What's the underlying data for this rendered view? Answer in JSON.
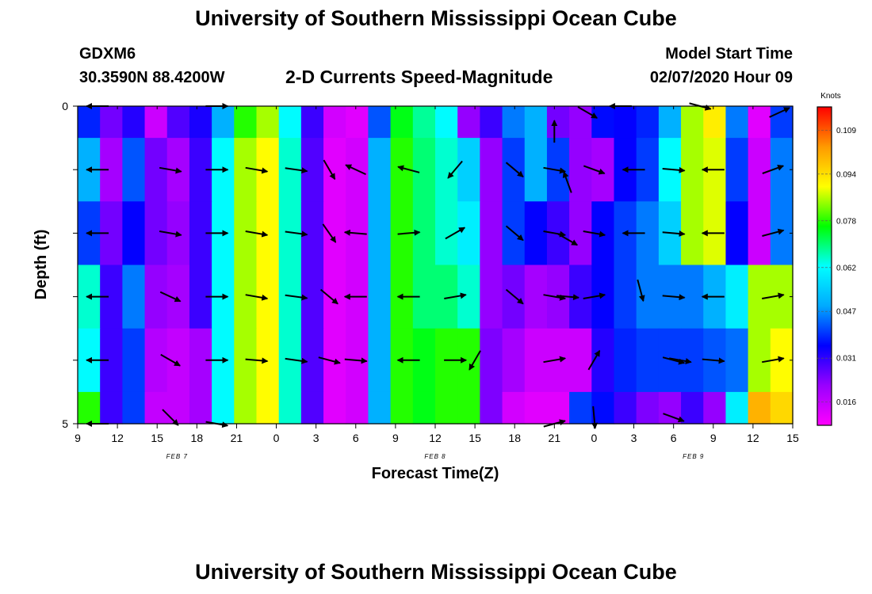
{
  "header": {
    "title_top": "University of Southern Mississippi Ocean Cube",
    "title_bottom": "University of Southern Mississippi Ocean Cube",
    "station_id": "GDXM6",
    "station_coords": "30.3590N 88.4200W",
    "chart_title": "2-D Currents Speed-Magnitude",
    "run_label": "Model Start Time",
    "run_time": "02/07/2020 Hour 09"
  },
  "chart_data": {
    "type": "heatmap",
    "title": "2-D Currents Speed-Magnitude",
    "xlabel": "Forecast Time(Z)",
    "ylabel": "Depth (ft)",
    "x_ticks": [
      "9",
      "12",
      "15",
      "18",
      "21",
      "0",
      "3",
      "6",
      "9",
      "12",
      "15",
      "18",
      "21",
      "0",
      "3",
      "6",
      "9",
      "12",
      "15"
    ],
    "x_range_hours": [
      0,
      54
    ],
    "day_labels": [
      {
        "text": "FEB 7",
        "hour": 7.5
      },
      {
        "text": "FEB 8",
        "hour": 27
      },
      {
        "text": "FEB 9",
        "hour": 46.5
      }
    ],
    "y_ticks": [
      "0",
      "5"
    ],
    "ylim": [
      0,
      5
    ],
    "y_inverted": true,
    "colorbar": {
      "unit": "Knots",
      "vmin": 0.008,
      "vmax": 0.117,
      "ticks": [
        "0.109",
        "0.094",
        "0.078",
        "0.062",
        "0.047",
        "0.031",
        "0.016"
      ],
      "colors": [
        "#ff00ff",
        "#9900ff",
        "#0000ff",
        "#00aaff",
        "#00ffff",
        "#00ff00",
        "#ffff00",
        "#ff9900",
        "#ff0000"
      ]
    },
    "layers": [
      {
        "depth_top": 0,
        "depth_bottom": 0.5,
        "speed": [
          0.038,
          0.025,
          0.032,
          0.015,
          0.028,
          0.033,
          0.05,
          0.078,
          0.085,
          0.062,
          0.03,
          0.014,
          0.012,
          0.042,
          0.075,
          0.068,
          0.062,
          0.022,
          0.03,
          0.045,
          0.05,
          0.025,
          0.022,
          0.036,
          0.035,
          0.038,
          0.05,
          0.085,
          0.092,
          0.045,
          0.012,
          0.04
        ],
        "arrows": [
          {
            "hour": 1.5,
            "depth": 0.0,
            "angle": 180,
            "speed": 0.03
          },
          {
            "hour": 10.5,
            "depth": 0.0,
            "angle": 0,
            "speed": 0.03
          },
          {
            "hour": 36.0,
            "depth": 0.4,
            "angle": 90,
            "speed": 0.025
          },
          {
            "hour": 38.5,
            "depth": 0.1,
            "angle": -30,
            "speed": 0.03
          },
          {
            "hour": 41.0,
            "depth": 0.0,
            "angle": 180,
            "speed": 0.03
          },
          {
            "hour": 47.0,
            "depth": 0.0,
            "angle": -15,
            "speed": 0.03
          },
          {
            "hour": 53.0,
            "depth": 0.1,
            "angle": 25,
            "speed": 0.025
          }
        ]
      },
      {
        "depth_top": 0.5,
        "depth_bottom": 1.5,
        "speed": [
          0.05,
          0.02,
          0.042,
          0.025,
          0.02,
          0.03,
          0.062,
          0.085,
          0.09,
          0.065,
          0.028,
          0.012,
          0.014,
          0.05,
          0.078,
          0.07,
          0.065,
          0.055,
          0.022,
          0.04,
          0.05,
          0.04,
          0.022,
          0.02,
          0.035,
          0.04,
          0.062,
          0.085,
          0.088,
          0.04,
          0.015,
          0.045
        ],
        "arrows": [
          {
            "hour": 1.5,
            "depth": 1.0,
            "angle": 180,
            "speed": 0.03
          },
          {
            "hour": 7.0,
            "depth": 1.0,
            "angle": -10,
            "speed": 0.03
          },
          {
            "hour": 10.5,
            "depth": 1.0,
            "angle": 0,
            "speed": 0.03
          },
          {
            "hour": 13.5,
            "depth": 1.0,
            "angle": -10,
            "speed": 0.03
          },
          {
            "hour": 16.5,
            "depth": 1.0,
            "angle": -8,
            "speed": 0.03
          },
          {
            "hour": 19.0,
            "depth": 1.0,
            "angle": -60,
            "speed": 0.03
          },
          {
            "hour": 21.0,
            "depth": 1.0,
            "angle": 155,
            "speed": 0.03
          },
          {
            "hour": 25.0,
            "depth": 1.0,
            "angle": 165,
            "speed": 0.03
          },
          {
            "hour": 28.5,
            "depth": 1.0,
            "angle": 230,
            "speed": 0.03
          },
          {
            "hour": 33.0,
            "depth": 1.0,
            "angle": -40,
            "speed": 0.03
          },
          {
            "hour": 36.0,
            "depth": 1.0,
            "angle": -10,
            "speed": 0.03
          },
          {
            "hour": 37.0,
            "depth": 1.2,
            "angle": 110,
            "speed": 0.03
          },
          {
            "hour": 39.0,
            "depth": 1.0,
            "angle": -20,
            "speed": 0.03
          },
          {
            "hour": 42.0,
            "depth": 1.0,
            "angle": 180,
            "speed": 0.03
          },
          {
            "hour": 45.0,
            "depth": 1.0,
            "angle": -5,
            "speed": 0.03
          },
          {
            "hour": 48.0,
            "depth": 1.0,
            "angle": 180,
            "speed": 0.03
          },
          {
            "hour": 52.5,
            "depth": 1.0,
            "angle": 20,
            "speed": 0.03
          }
        ]
      },
      {
        "depth_top": 1.5,
        "depth_bottom": 2.5,
        "speed": [
          0.04,
          0.025,
          0.035,
          0.025,
          0.022,
          0.03,
          0.062,
          0.085,
          0.09,
          0.065,
          0.028,
          0.012,
          0.014,
          0.05,
          0.078,
          0.07,
          0.065,
          0.06,
          0.022,
          0.04,
          0.035,
          0.03,
          0.022,
          0.035,
          0.04,
          0.045,
          0.055,
          0.085,
          0.088,
          0.035,
          0.015,
          0.045
        ],
        "arrows": [
          {
            "hour": 1.5,
            "depth": 2.0,
            "angle": 180,
            "speed": 0.03
          },
          {
            "hour": 7.0,
            "depth": 2.0,
            "angle": -10,
            "speed": 0.03
          },
          {
            "hour": 10.5,
            "depth": 2.0,
            "angle": 0,
            "speed": 0.03
          },
          {
            "hour": 13.5,
            "depth": 2.0,
            "angle": -10,
            "speed": 0.03
          },
          {
            "hour": 16.5,
            "depth": 2.0,
            "angle": -8,
            "speed": 0.03
          },
          {
            "hour": 19.0,
            "depth": 2.0,
            "angle": -55,
            "speed": 0.03
          },
          {
            "hour": 21.0,
            "depth": 2.0,
            "angle": 175,
            "speed": 0.03
          },
          {
            "hour": 25.0,
            "depth": 2.0,
            "angle": 5,
            "speed": 0.03
          },
          {
            "hour": 28.5,
            "depth": 2.0,
            "angle": 30,
            "speed": 0.03
          },
          {
            "hour": 33.0,
            "depth": 2.0,
            "angle": -40,
            "speed": 0.03
          },
          {
            "hour": 36.0,
            "depth": 2.0,
            "angle": -10,
            "speed": 0.03
          },
          {
            "hour": 37.0,
            "depth": 2.1,
            "angle": -30,
            "speed": 0.03
          },
          {
            "hour": 39.0,
            "depth": 2.0,
            "angle": -10,
            "speed": 0.03
          },
          {
            "hour": 42.0,
            "depth": 2.0,
            "angle": 180,
            "speed": 0.03
          },
          {
            "hour": 45.0,
            "depth": 2.0,
            "angle": -5,
            "speed": 0.03
          },
          {
            "hour": 48.0,
            "depth": 2.0,
            "angle": 180,
            "speed": 0.03
          },
          {
            "hour": 52.5,
            "depth": 2.0,
            "angle": 15,
            "speed": 0.03
          }
        ]
      },
      {
        "depth_top": 2.5,
        "depth_bottom": 3.5,
        "speed": [
          0.065,
          0.03,
          0.045,
          0.022,
          0.02,
          0.03,
          0.062,
          0.085,
          0.09,
          0.065,
          0.028,
          0.012,
          0.014,
          0.05,
          0.078,
          0.07,
          0.07,
          0.065,
          0.022,
          0.025,
          0.02,
          0.022,
          0.03,
          0.035,
          0.04,
          0.045,
          0.045,
          0.045,
          0.05,
          0.06,
          0.085,
          0.085
        ],
        "arrows": [
          {
            "hour": 1.5,
            "depth": 3.0,
            "angle": 180,
            "speed": 0.03
          },
          {
            "hour": 7.0,
            "depth": 3.0,
            "angle": -25,
            "speed": 0.03
          },
          {
            "hour": 10.5,
            "depth": 3.0,
            "angle": 0,
            "speed": 0.03
          },
          {
            "hour": 13.5,
            "depth": 3.0,
            "angle": -10,
            "speed": 0.03
          },
          {
            "hour": 16.5,
            "depth": 3.0,
            "angle": -8,
            "speed": 0.03
          },
          {
            "hour": 19.0,
            "depth": 3.0,
            "angle": -40,
            "speed": 0.03
          },
          {
            "hour": 21.0,
            "depth": 3.0,
            "angle": 180,
            "speed": 0.03
          },
          {
            "hour": 25.0,
            "depth": 3.0,
            "angle": 180,
            "speed": 0.03
          },
          {
            "hour": 28.5,
            "depth": 3.0,
            "angle": 10,
            "speed": 0.03
          },
          {
            "hour": 33.0,
            "depth": 3.0,
            "angle": -40,
            "speed": 0.03
          },
          {
            "hour": 36.0,
            "depth": 3.0,
            "angle": -10,
            "speed": 0.03
          },
          {
            "hour": 37.0,
            "depth": 3.0,
            "angle": -5,
            "speed": 0.03
          },
          {
            "hour": 39.0,
            "depth": 3.0,
            "angle": 10,
            "speed": 0.03
          },
          {
            "hour": 42.5,
            "depth": 2.9,
            "angle": -75,
            "speed": 0.03
          },
          {
            "hour": 45.0,
            "depth": 3.0,
            "angle": -5,
            "speed": 0.03
          },
          {
            "hour": 48.0,
            "depth": 3.0,
            "angle": 180,
            "speed": 0.03
          },
          {
            "hour": 52.5,
            "depth": 3.0,
            "angle": 10,
            "speed": 0.03
          }
        ]
      },
      {
        "depth_top": 3.5,
        "depth_bottom": 4.5,
        "speed": [
          0.062,
          0.03,
          0.04,
          0.018,
          0.016,
          0.02,
          0.062,
          0.085,
          0.09,
          0.065,
          0.028,
          0.012,
          0.014,
          0.05,
          0.078,
          0.075,
          0.078,
          0.078,
          0.024,
          0.02,
          0.015,
          0.015,
          0.015,
          0.032,
          0.038,
          0.04,
          0.04,
          0.04,
          0.042,
          0.044,
          0.085,
          0.09
        ],
        "arrows": [
          {
            "hour": 1.5,
            "depth": 4.0,
            "angle": 180,
            "speed": 0.03
          },
          {
            "hour": 7.0,
            "depth": 4.0,
            "angle": -30,
            "speed": 0.03
          },
          {
            "hour": 10.5,
            "depth": 4.0,
            "angle": 0,
            "speed": 0.03
          },
          {
            "hour": 13.5,
            "depth": 4.0,
            "angle": -5,
            "speed": 0.03
          },
          {
            "hour": 16.5,
            "depth": 4.0,
            "angle": -8,
            "speed": 0.03
          },
          {
            "hour": 19.0,
            "depth": 4.0,
            "angle": -15,
            "speed": 0.03
          },
          {
            "hour": 21.0,
            "depth": 4.0,
            "angle": -5,
            "speed": 0.03
          },
          {
            "hour": 25.0,
            "depth": 4.0,
            "angle": 180,
            "speed": 0.03
          },
          {
            "hour": 28.5,
            "depth": 4.0,
            "angle": 0,
            "speed": 0.03
          },
          {
            "hour": 30.0,
            "depth": 4.0,
            "angle": 240,
            "speed": 0.03
          },
          {
            "hour": 36.0,
            "depth": 4.0,
            "angle": 10,
            "speed": 0.03
          },
          {
            "hour": 39.0,
            "depth": 4.0,
            "angle": 60,
            "speed": 0.03
          },
          {
            "hour": 45.0,
            "depth": 4.0,
            "angle": -15,
            "speed": 0.03
          },
          {
            "hour": 45.5,
            "depth": 4.0,
            "angle": -10,
            "speed": 0.03
          },
          {
            "hour": 48.0,
            "depth": 4.0,
            "angle": -5,
            "speed": 0.03
          },
          {
            "hour": 52.5,
            "depth": 4.0,
            "angle": 10,
            "speed": 0.03
          }
        ]
      },
      {
        "depth_top": 4.5,
        "depth_bottom": 5.0,
        "speed": [
          0.078,
          0.03,
          0.04,
          0.016,
          0.016,
          0.02,
          0.062,
          0.085,
          0.09,
          0.065,
          0.028,
          0.012,
          0.014,
          0.05,
          0.078,
          0.075,
          0.078,
          0.078,
          0.024,
          0.014,
          0.012,
          0.012,
          0.04,
          0.036,
          0.03,
          0.024,
          0.022,
          0.03,
          0.022,
          0.06,
          0.1,
          0.095
        ],
        "arrows": [
          {
            "hour": 1.5,
            "depth": 5.0,
            "angle": 180,
            "speed": 0.03
          },
          {
            "hour": 7.0,
            "depth": 4.9,
            "angle": -45,
            "speed": 0.03
          },
          {
            "hour": 10.5,
            "depth": 5.0,
            "angle": -10,
            "speed": 0.03
          },
          {
            "hour": 36.0,
            "depth": 5.0,
            "angle": 15,
            "speed": 0.03
          },
          {
            "hour": 39.0,
            "depth": 4.9,
            "angle": -85,
            "speed": 0.03
          },
          {
            "hour": 45.0,
            "depth": 4.9,
            "angle": -20,
            "speed": 0.03
          }
        ]
      }
    ]
  }
}
